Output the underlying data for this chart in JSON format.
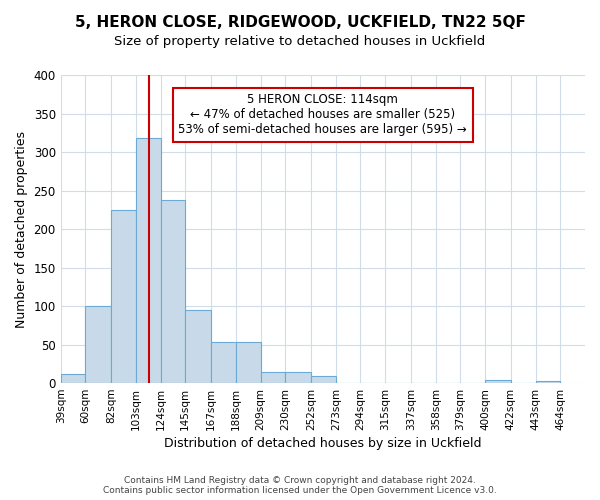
{
  "title": "5, HERON CLOSE, RIDGEWOOD, UCKFIELD, TN22 5QF",
  "subtitle": "Size of property relative to detached houses in Uckfield",
  "xlabel": "Distribution of detached houses by size in Uckfield",
  "ylabel": "Number of detached properties",
  "bin_labels": [
    "39sqm",
    "60sqm",
    "82sqm",
    "103sqm",
    "124sqm",
    "145sqm",
    "167sqm",
    "188sqm",
    "209sqm",
    "230sqm",
    "252sqm",
    "273sqm",
    "294sqm",
    "315sqm",
    "337sqm",
    "358sqm",
    "379sqm",
    "400sqm",
    "422sqm",
    "443sqm",
    "464sqm"
  ],
  "bin_edges": [
    39,
    60,
    82,
    103,
    124,
    145,
    167,
    188,
    209,
    230,
    252,
    273,
    294,
    315,
    337,
    358,
    379,
    400,
    422,
    443,
    464
  ],
  "bar_heights": [
    12,
    100,
    225,
    318,
    238,
    95,
    53,
    53,
    15,
    14,
    9,
    0,
    0,
    0,
    0,
    0,
    0,
    4,
    0,
    3
  ],
  "bar_color": "#c8daea",
  "bar_edge_color": "#6aaad4",
  "vline_x": 114,
  "vline_color": "#cc0000",
  "ylim": [
    0,
    400
  ],
  "yticks": [
    0,
    50,
    100,
    150,
    200,
    250,
    300,
    350,
    400
  ],
  "annotation_text": "5 HERON CLOSE: 114sqm\n← 47% of detached houses are smaller (525)\n53% of semi-detached houses are larger (595) →",
  "annotation_box_color": "#ffffff",
  "annotation_box_edge": "#cc0000",
  "footer_line1": "Contains HM Land Registry data © Crown copyright and database right 2024.",
  "footer_line2": "Contains public sector information licensed under the Open Government Licence v3.0.",
  "background_color": "#ffffff",
  "grid_color": "#d0dce8",
  "title_fontsize": 11,
  "subtitle_fontsize": 10
}
